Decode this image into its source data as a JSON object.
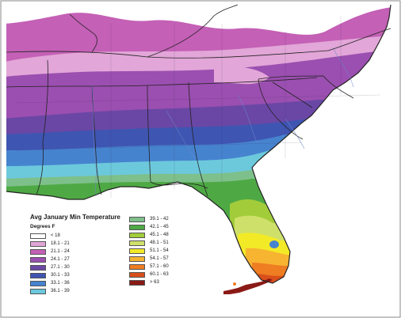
{
  "legend": {
    "title": "Avg January Min Temperature",
    "units": "Degrees F",
    "classes": [
      {
        "label": "< 18",
        "color": "#ffffff"
      },
      {
        "label": "18.1 - 21",
        "color": "#e2a6d8"
      },
      {
        "label": "21.1 - 24",
        "color": "#c460b6"
      },
      {
        "label": "24.1 - 27",
        "color": "#9b4fb0"
      },
      {
        "label": "27.1 - 30",
        "color": "#6a47a5"
      },
      {
        "label": "30.1 - 33",
        "color": "#3f55b2"
      },
      {
        "label": "33.1 - 36",
        "color": "#4683cf"
      },
      {
        "label": "36.1 - 39",
        "color": "#6cc9dc"
      },
      {
        "label": "39.1 - 42",
        "color": "#7ec08b"
      },
      {
        "label": "42.1 - 45",
        "color": "#4ea944"
      },
      {
        "label": "45.1 - 48",
        "color": "#a2cc3a"
      },
      {
        "label": "48.1 - 51",
        "color": "#cfe06a"
      },
      {
        "label": "51.1 - 54",
        "color": "#f3ea27"
      },
      {
        "label": "54.1 - 57",
        "color": "#f7b431"
      },
      {
        "label": "57.1 - 60",
        "color": "#ef7d22"
      },
      {
        "label": "60.1 - 63",
        "color": "#d94f1b"
      },
      {
        "label": "> 63",
        "color": "#8a1a16"
      }
    ]
  }
}
